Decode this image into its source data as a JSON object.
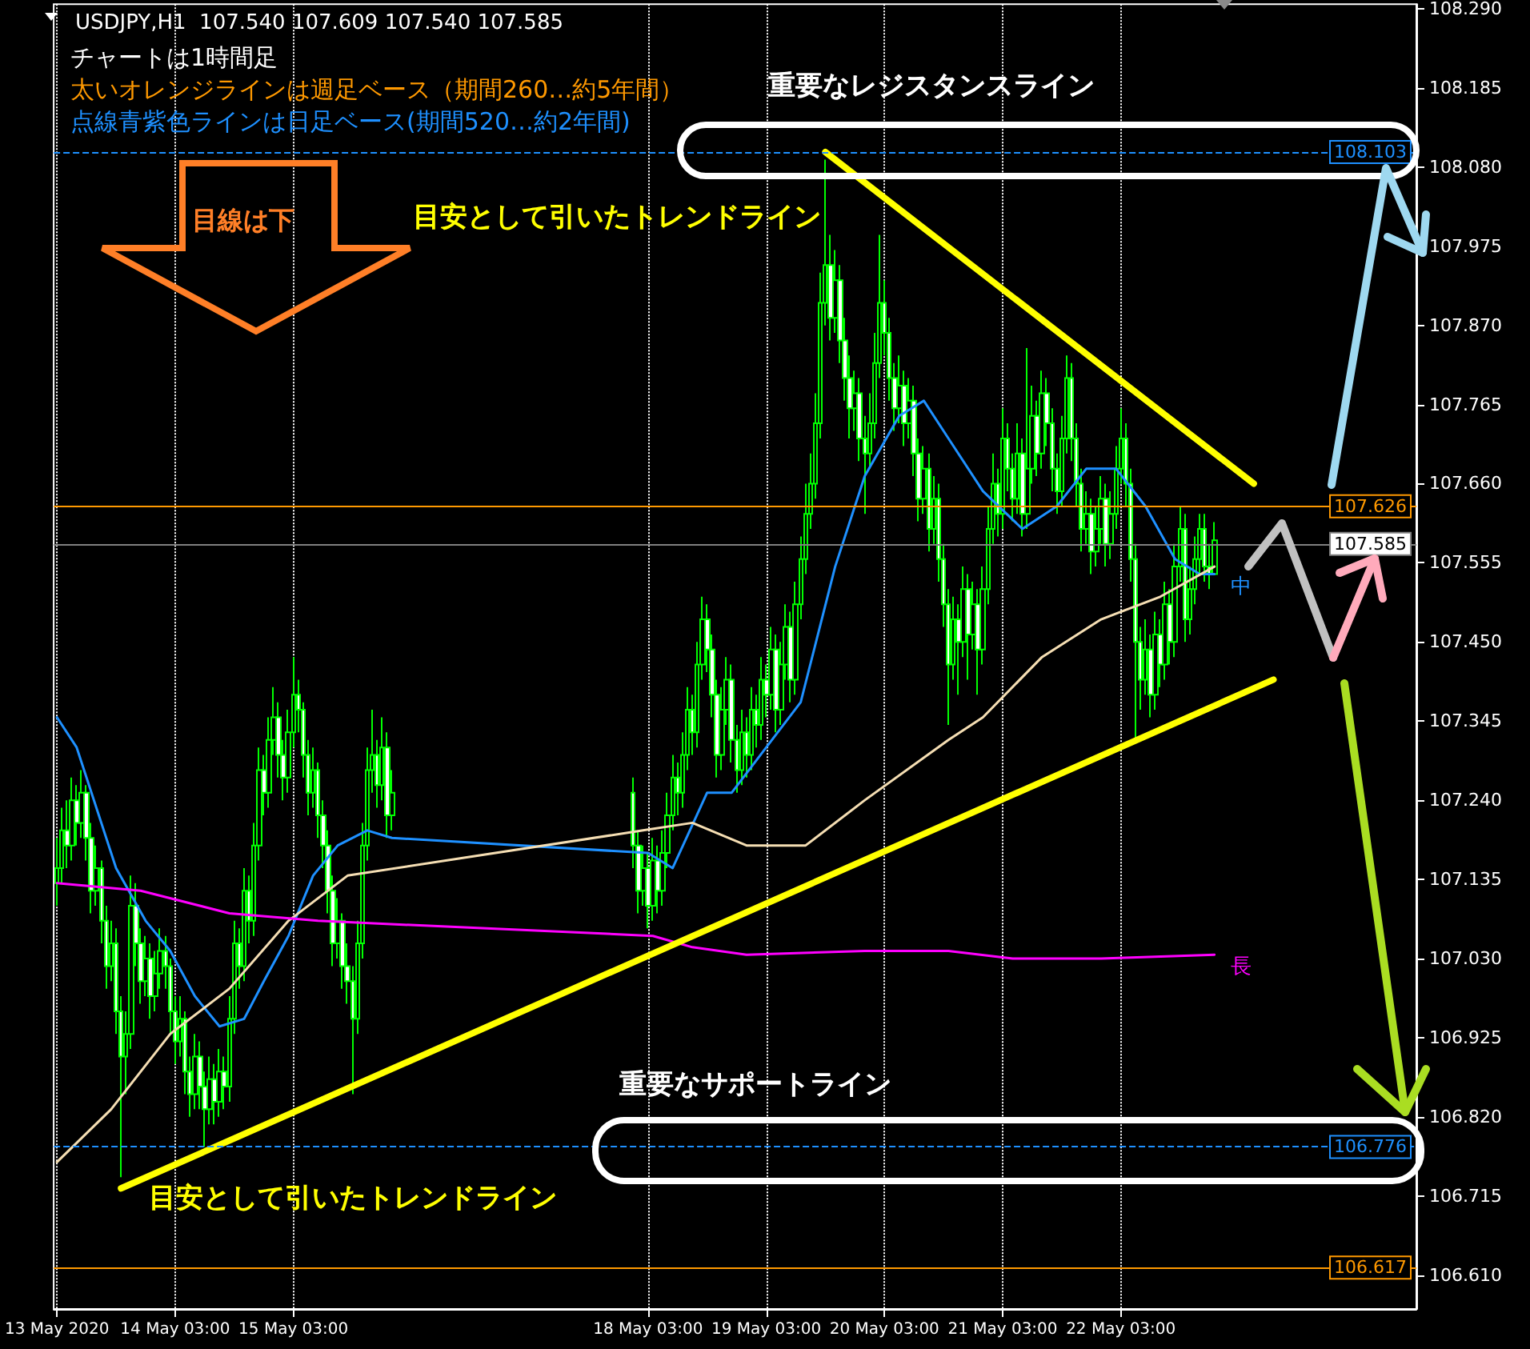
{
  "chart_data": {
    "type": "candlestick",
    "title": "USDJPY,H1  107.540 107.609 107.540 107.585",
    "annotations": [
      "チャートは1時間足",
      "太いオレンジラインは週足ベース（期間260…約5年間）",
      "点線青紫色ラインは日足ベース(期間520…約2年間)",
      "目線は下",
      "重要なレジスタンスライン",
      "目安として引いたトレンドライン",
      "目安として引いたトレンドライン",
      "重要なサポートライン"
    ],
    "xlim": [
      "2020-05-13T02:20",
      "2020-05-24T15:00"
    ],
    "xticks": [
      {
        "value": "2020-05-13T03:00",
        "label": "13 May 2020"
      },
      {
        "value": "2020-05-14T03:00",
        "label": "14 May 03:00"
      },
      {
        "value": "2020-05-15T03:00",
        "label": "15 May 03:00"
      },
      {
        "value": "2020-05-18T03:00",
        "label": "18 May 03:00"
      },
      {
        "value": "2020-05-19T03:00",
        "label": "19 May 03:00"
      },
      {
        "value": "2020-05-20T03:00",
        "label": "20 May 03:00"
      },
      {
        "value": "2020-05-21T03:00",
        "label": "21 May 03:00"
      },
      {
        "value": "2020-05-22T03:00",
        "label": "22 May 03:00"
      }
    ],
    "ylim": [
      106.565,
      108.296
    ],
    "yticks": [
      {
        "value": 108.29,
        "label": "108.290"
      },
      {
        "value": 108.185,
        "label": "108.185"
      },
      {
        "value": 108.08,
        "label": "108.080"
      },
      {
        "value": 107.975,
        "label": "107.975"
      },
      {
        "value": 107.87,
        "label": "107.870"
      },
      {
        "value": 107.765,
        "label": "107.765"
      },
      {
        "value": 107.66,
        "label": "107.660"
      },
      {
        "value": 107.555,
        "label": "107.555"
      },
      {
        "value": 107.45,
        "label": "107.450"
      },
      {
        "value": 107.345,
        "label": "107.345"
      },
      {
        "value": 107.24,
        "label": "107.240"
      },
      {
        "value": 107.135,
        "label": "107.135"
      },
      {
        "value": 107.03,
        "label": "107.030"
      },
      {
        "value": 106.925,
        "label": "106.925"
      },
      {
        "value": 106.82,
        "label": "106.820"
      },
      {
        "value": 106.715,
        "label": "106.715"
      },
      {
        "value": 106.61,
        "label": "106.610"
      }
    ],
    "grid": "x",
    "marker": "none",
    "ref_lines": [
      {
        "axis": "y",
        "value": 108.103,
        "label": "108.103",
        "color": "#1e90ff",
        "line_style": "dashed"
      },
      {
        "axis": "y",
        "value": 107.626,
        "label": "107.626",
        "color": "#ff9900",
        "line_style": "solid"
      },
      {
        "axis": "y",
        "value": 107.585,
        "label": "107.585",
        "color": "#808080",
        "line_style": "solid"
      },
      {
        "axis": "y",
        "value": 106.776,
        "label": "106.776",
        "color": "#1e90ff",
        "line_style": "dashed"
      },
      {
        "axis": "y",
        "value": 106.617,
        "label": "106.617",
        "color": "#ff9900",
        "line_style": "solid"
      }
    ],
    "series": [
      {
        "color": "#00ff00",
        "x": [
          "2020-05-13T03:00",
          "2020-05-13T04:00",
          "2020-05-13T05:00",
          "2020-05-13T06:00",
          "2020-05-13T07:00",
          "2020-05-13T08:00",
          "2020-05-13T09:00",
          "2020-05-13T10:00",
          "2020-05-13T11:00",
          "2020-05-13T12:00",
          "2020-05-13T13:00",
          "2020-05-13T14:00",
          "2020-05-13T15:00",
          "2020-05-13T16:00",
          "2020-05-13T17:00",
          "2020-05-13T18:00",
          "2020-05-13T19:00",
          "2020-05-13T20:00",
          "2020-05-13T21:00",
          "2020-05-13T22:00",
          "2020-05-13T23:00",
          "2020-05-14T00:00",
          "2020-05-14T01:00",
          "2020-05-14T02:00",
          "2020-05-14T03:00",
          "2020-05-14T04:00",
          "2020-05-14T05:00",
          "2020-05-14T06:00",
          "2020-05-14T07:00",
          "2020-05-14T08:00",
          "2020-05-14T09:00",
          "2020-05-14T10:00",
          "2020-05-14T11:00",
          "2020-05-14T12:00",
          "2020-05-14T13:00",
          "2020-05-14T14:00",
          "2020-05-14T15:00",
          "2020-05-14T16:00",
          "2020-05-14T17:00",
          "2020-05-14T18:00",
          "2020-05-14T19:00",
          "2020-05-14T20:00",
          "2020-05-14T21:00",
          "2020-05-14T22:00",
          "2020-05-14T23:00",
          "2020-05-15T00:00",
          "2020-05-15T01:00",
          "2020-05-15T02:00",
          "2020-05-15T03:00",
          "2020-05-15T04:00",
          "2020-05-15T05:00",
          "2020-05-15T06:00",
          "2020-05-15T07:00",
          "2020-05-15T08:00",
          "2020-05-15T09:00",
          "2020-05-15T10:00",
          "2020-05-15T11:00",
          "2020-05-15T12:00",
          "2020-05-15T13:00",
          "2020-05-15T14:00",
          "2020-05-15T15:00",
          "2020-05-15T16:00",
          "2020-05-15T17:00",
          "2020-05-15T18:00",
          "2020-05-15T19:00",
          "2020-05-15T20:00",
          "2020-05-15T21:00",
          "2020-05-15T22:00",
          "2020-05-15T23:00",
          "2020-05-18T00:00",
          "2020-05-18T01:00",
          "2020-05-18T02:00",
          "2020-05-18T03:00",
          "2020-05-18T04:00",
          "2020-05-18T05:00",
          "2020-05-18T06:00",
          "2020-05-18T07:00",
          "2020-05-18T08:00",
          "2020-05-18T09:00",
          "2020-05-18T10:00",
          "2020-05-18T11:00",
          "2020-05-18T12:00",
          "2020-05-18T13:00",
          "2020-05-18T14:00",
          "2020-05-18T15:00",
          "2020-05-18T16:00",
          "2020-05-18T17:00",
          "2020-05-18T18:00",
          "2020-05-18T19:00",
          "2020-05-18T20:00",
          "2020-05-18T21:00",
          "2020-05-18T22:00",
          "2020-05-18T23:00",
          "2020-05-19T00:00",
          "2020-05-19T01:00",
          "2020-05-19T02:00",
          "2020-05-19T03:00",
          "2020-05-19T04:00",
          "2020-05-19T05:00",
          "2020-05-19T06:00",
          "2020-05-19T07:00",
          "2020-05-19T08:00",
          "2020-05-19T09:00",
          "2020-05-19T10:00",
          "2020-05-19T11:00",
          "2020-05-19T12:00",
          "2020-05-19T13:00",
          "2020-05-19T14:00",
          "2020-05-19T15:00",
          "2020-05-19T16:00",
          "2020-05-19T17:00",
          "2020-05-19T18:00",
          "2020-05-19T19:00",
          "2020-05-19T20:00",
          "2020-05-19T21:00",
          "2020-05-19T22:00",
          "2020-05-19T23:00",
          "2020-05-20T00:00",
          "2020-05-20T01:00",
          "2020-05-20T02:00",
          "2020-05-20T03:00",
          "2020-05-20T04:00",
          "2020-05-20T05:00",
          "2020-05-20T06:00",
          "2020-05-20T07:00",
          "2020-05-20T08:00",
          "2020-05-20T09:00",
          "2020-05-20T10:00",
          "2020-05-20T11:00",
          "2020-05-20T12:00",
          "2020-05-20T13:00",
          "2020-05-20T14:00",
          "2020-05-20T15:00",
          "2020-05-20T16:00",
          "2020-05-20T17:00",
          "2020-05-20T18:00",
          "2020-05-20T19:00",
          "2020-05-20T20:00",
          "2020-05-20T21:00",
          "2020-05-20T22:00",
          "2020-05-20T23:00",
          "2020-05-21T00:00",
          "2020-05-21T01:00",
          "2020-05-21T02:00",
          "2020-05-21T03:00",
          "2020-05-21T04:00",
          "2020-05-21T05:00",
          "2020-05-21T06:00",
          "2020-05-21T07:00",
          "2020-05-21T08:00",
          "2020-05-21T09:00",
          "2020-05-21T10:00",
          "2020-05-21T11:00",
          "2020-05-21T12:00",
          "2020-05-21T13:00",
          "2020-05-21T14:00",
          "2020-05-21T15:00",
          "2020-05-21T16:00",
          "2020-05-21T17:00",
          "2020-05-21T18:00",
          "2020-05-21T19:00",
          "2020-05-21T20:00",
          "2020-05-21T21:00",
          "2020-05-21T22:00",
          "2020-05-21T23:00",
          "2020-05-22T00:00",
          "2020-05-22T01:00",
          "2020-05-22T02:00",
          "2020-05-22T03:00",
          "2020-05-22T04:00",
          "2020-05-22T05:00",
          "2020-05-22T06:00",
          "2020-05-22T07:00",
          "2020-05-22T08:00",
          "2020-05-22T09:00",
          "2020-05-22T10:00",
          "2020-05-22T11:00",
          "2020-05-22T12:00",
          "2020-05-22T13:00",
          "2020-05-22T14:00",
          "2020-05-22T15:00",
          "2020-05-22T16:00",
          "2020-05-22T17:00",
          "2020-05-22T18:00",
          "2020-05-22T19:00",
          "2020-05-22T20:00",
          "2020-05-22T21:00",
          "2020-05-22T22:00"
        ],
        "ohlc": [
          [
            107.13,
            107.19,
            107.1,
            107.15
          ],
          [
            107.15,
            107.23,
            107.13,
            107.2
          ],
          [
            107.2,
            107.24,
            107.15,
            107.18
          ],
          [
            107.18,
            107.27,
            107.16,
            107.24
          ],
          [
            107.24,
            107.26,
            107.18,
            107.21
          ],
          [
            107.21,
            107.28,
            107.19,
            107.25
          ],
          [
            107.25,
            107.26,
            107.16,
            107.19
          ],
          [
            107.19,
            107.21,
            107.09,
            107.12
          ],
          [
            107.12,
            107.18,
            107.1,
            107.15
          ],
          [
            107.15,
            107.16,
            107.05,
            107.08
          ],
          [
            107.08,
            107.1,
            106.99,
            107.02
          ],
          [
            107.02,
            107.08,
            107.0,
            107.05
          ],
          [
            107.05,
            107.07,
            106.93,
            106.96
          ],
          [
            106.96,
            106.98,
            106.74,
            106.9
          ],
          [
            106.9,
            106.96,
            106.85,
            106.93
          ],
          [
            106.93,
            107.14,
            106.91,
            107.1
          ],
          [
            107.1,
            107.13,
            107.02,
            107.05
          ],
          [
            107.05,
            107.07,
            106.97,
            107.0
          ],
          [
            107.0,
            107.06,
            106.98,
            107.03
          ],
          [
            107.03,
            107.05,
            106.95,
            106.98
          ],
          [
            106.98,
            107.04,
            106.96,
            107.01
          ],
          [
            107.01,
            107.07,
            106.99,
            107.04
          ],
          [
            107.04,
            107.06,
            106.99,
            107.02
          ],
          [
            107.02,
            107.03,
            106.93,
            106.96
          ],
          [
            106.96,
            106.98,
            106.89,
            106.92
          ],
          [
            106.92,
            106.98,
            106.9,
            106.95
          ],
          [
            106.95,
            106.96,
            106.85,
            106.88
          ],
          [
            106.88,
            106.9,
            106.82,
            106.85
          ],
          [
            106.85,
            106.93,
            106.83,
            106.9
          ],
          [
            106.9,
            106.92,
            106.83,
            106.86
          ],
          [
            106.86,
            106.88,
            106.78,
            106.83
          ],
          [
            106.83,
            106.9,
            106.81,
            106.87
          ],
          [
            106.87,
            106.89,
            106.81,
            106.84
          ],
          [
            106.84,
            106.91,
            106.82,
            106.88
          ],
          [
            106.88,
            106.9,
            106.83,
            106.86
          ],
          [
            106.86,
            106.98,
            106.84,
            106.95
          ],
          [
            106.95,
            107.08,
            106.93,
            107.05
          ],
          [
            107.05,
            107.07,
            106.99,
            107.02
          ],
          [
            107.02,
            107.15,
            107.0,
            107.12
          ],
          [
            107.12,
            107.14,
            107.05,
            107.08
          ],
          [
            107.08,
            107.21,
            107.06,
            107.18
          ],
          [
            107.18,
            107.31,
            107.16,
            107.28
          ],
          [
            107.28,
            107.3,
            107.22,
            107.25
          ],
          [
            107.25,
            107.35,
            107.23,
            107.32
          ],
          [
            107.32,
            107.39,
            107.3,
            107.35
          ],
          [
            107.35,
            107.37,
            107.27,
            107.3
          ],
          [
            107.3,
            107.32,
            107.24,
            107.27
          ],
          [
            107.27,
            107.36,
            107.25,
            107.33
          ],
          [
            107.33,
            107.43,
            107.31,
            107.38
          ],
          [
            107.38,
            107.4,
            107.33,
            107.36
          ],
          [
            107.36,
            107.37,
            107.27,
            107.3
          ],
          [
            107.3,
            107.32,
            107.22,
            107.25
          ],
          [
            107.25,
            107.31,
            107.23,
            107.28
          ],
          [
            107.28,
            107.29,
            107.19,
            107.22
          ],
          [
            107.22,
            107.24,
            107.15,
            107.18
          ],
          [
            107.18,
            107.2,
            107.09,
            107.12
          ],
          [
            107.12,
            107.14,
            107.02,
            107.05
          ],
          [
            107.05,
            107.11,
            107.03,
            107.08
          ],
          [
            107.08,
            107.09,
            106.99,
            107.02
          ],
          [
            107.02,
            107.05,
            106.97,
            107.0
          ],
          [
            107.0,
            107.02,
            106.85,
            106.95
          ],
          [
            106.95,
            107.08,
            106.93,
            107.05
          ],
          [
            107.05,
            107.21,
            107.03,
            107.18
          ],
          [
            107.18,
            107.31,
            107.16,
            107.28
          ],
          [
            107.28,
            107.36,
            107.25,
            107.3
          ],
          [
            107.3,
            107.32,
            107.23,
            107.26
          ],
          [
            107.26,
            107.35,
            107.24,
            107.31
          ],
          [
            107.31,
            107.33,
            107.19,
            107.22
          ],
          [
            107.22,
            107.28,
            107.2,
            107.25
          ],
          [
            107.25,
            107.27,
            107.15,
            107.18
          ],
          [
            107.18,
            107.2,
            107.09,
            107.12
          ],
          [
            107.12,
            107.18,
            107.1,
            107.15
          ],
          [
            107.15,
            107.17,
            107.07,
            107.1
          ],
          [
            107.1,
            107.19,
            107.08,
            107.16
          ],
          [
            107.16,
            107.18,
            107.09,
            107.12
          ],
          [
            107.12,
            107.2,
            107.1,
            107.17
          ],
          [
            107.17,
            107.25,
            107.15,
            107.22
          ],
          [
            107.22,
            107.3,
            107.2,
            107.27
          ],
          [
            107.27,
            107.29,
            107.22,
            107.25
          ],
          [
            107.25,
            107.33,
            107.23,
            107.3
          ],
          [
            107.3,
            107.39,
            107.28,
            107.36
          ],
          [
            107.36,
            107.38,
            107.3,
            107.33
          ],
          [
            107.33,
            107.45,
            107.31,
            107.42
          ],
          [
            107.42,
            107.51,
            107.4,
            107.48
          ],
          [
            107.48,
            107.5,
            107.41,
            107.44
          ],
          [
            107.44,
            107.46,
            107.35,
            107.38
          ],
          [
            107.38,
            107.4,
            107.27,
            107.3
          ],
          [
            107.3,
            107.39,
            107.28,
            107.36
          ],
          [
            107.36,
            107.43,
            107.34,
            107.4
          ],
          [
            107.4,
            107.42,
            107.29,
            107.32
          ],
          [
            107.32,
            107.34,
            107.25,
            107.28
          ],
          [
            107.28,
            107.36,
            107.26,
            107.33
          ],
          [
            107.33,
            107.35,
            107.27,
            107.3
          ],
          [
            107.3,
            107.39,
            107.28,
            107.36
          ],
          [
            107.36,
            107.38,
            107.31,
            107.34
          ],
          [
            107.34,
            107.43,
            107.32,
            107.4
          ],
          [
            107.4,
            107.42,
            107.35,
            107.38
          ],
          [
            107.38,
            107.47,
            107.36,
            107.44
          ],
          [
            107.44,
            107.46,
            107.33,
            107.36
          ],
          [
            107.36,
            107.45,
            107.34,
            107.42
          ],
          [
            107.42,
            107.5,
            107.4,
            107.47
          ],
          [
            107.47,
            107.49,
            107.37,
            107.4
          ],
          [
            107.4,
            107.53,
            107.38,
            107.5
          ],
          [
            107.5,
            107.59,
            107.48,
            107.56
          ],
          [
            107.56,
            107.66,
            107.54,
            107.62
          ],
          [
            107.62,
            107.7,
            107.6,
            107.66
          ],
          [
            107.66,
            107.78,
            107.64,
            107.74
          ],
          [
            107.74,
            107.94,
            107.72,
            107.9
          ],
          [
            107.9,
            108.09,
            107.87,
            107.95
          ],
          [
            107.95,
            107.99,
            107.85,
            107.88
          ],
          [
            107.88,
            107.97,
            107.86,
            107.93
          ],
          [
            107.93,
            107.95,
            107.82,
            107.85
          ],
          [
            107.85,
            107.88,
            107.77,
            107.8
          ],
          [
            107.8,
            107.83,
            107.72,
            107.76
          ],
          [
            107.76,
            107.81,
            107.73,
            107.78
          ],
          [
            107.78,
            107.8,
            107.69,
            107.72
          ],
          [
            107.72,
            107.75,
            107.62,
            107.7
          ],
          [
            107.7,
            107.78,
            107.68,
            107.74
          ],
          [
            107.74,
            107.86,
            107.72,
            107.82
          ],
          [
            107.82,
            107.99,
            107.8,
            107.9
          ],
          [
            107.9,
            107.93,
            107.83,
            107.86
          ],
          [
            107.86,
            107.88,
            107.77,
            107.8
          ],
          [
            107.8,
            107.82,
            107.73,
            107.76
          ],
          [
            107.76,
            107.83,
            107.74,
            107.79
          ],
          [
            107.79,
            107.81,
            107.71,
            107.74
          ],
          [
            107.74,
            107.8,
            107.72,
            107.77
          ],
          [
            107.77,
            107.79,
            107.67,
            107.7
          ],
          [
            107.7,
            107.72,
            107.61,
            107.64
          ],
          [
            107.64,
            107.71,
            107.62,
            107.68
          ],
          [
            107.68,
            107.7,
            107.57,
            107.6
          ],
          [
            107.6,
            107.67,
            107.58,
            107.64
          ],
          [
            107.64,
            107.66,
            107.53,
            107.56
          ],
          [
            107.56,
            107.58,
            107.47,
            107.5
          ],
          [
            107.5,
            107.52,
            107.34,
            107.42
          ],
          [
            107.42,
            107.51,
            107.4,
            107.48
          ],
          [
            107.48,
            107.5,
            107.38,
            107.45
          ],
          [
            107.45,
            107.55,
            107.43,
            107.52
          ],
          [
            107.52,
            107.54,
            107.4,
            107.46
          ],
          [
            107.46,
            107.53,
            107.44,
            107.5
          ],
          [
            107.5,
            107.52,
            107.38,
            107.44
          ],
          [
            107.44,
            107.55,
            107.42,
            107.52
          ],
          [
            107.52,
            107.63,
            107.5,
            107.6
          ],
          [
            107.6,
            107.7,
            107.58,
            107.66
          ],
          [
            107.66,
            107.68,
            107.59,
            107.62
          ],
          [
            107.62,
            107.76,
            107.6,
            107.72
          ],
          [
            107.72,
            107.74,
            107.65,
            107.68
          ],
          [
            107.68,
            107.7,
            107.61,
            107.64
          ],
          [
            107.64,
            107.74,
            107.62,
            107.7
          ],
          [
            107.7,
            107.72,
            107.59,
            107.62
          ],
          [
            107.62,
            107.84,
            107.6,
            107.68
          ],
          [
            107.68,
            107.79,
            107.66,
            107.75
          ],
          [
            107.75,
            107.77,
            107.67,
            107.7
          ],
          [
            107.7,
            107.81,
            107.68,
            107.78
          ],
          [
            107.78,
            107.8,
            107.71,
            107.74
          ],
          [
            107.74,
            107.76,
            107.65,
            107.68
          ],
          [
            107.68,
            107.7,
            107.62,
            107.65
          ],
          [
            107.65,
            107.75,
            107.63,
            107.72
          ],
          [
            107.72,
            107.83,
            107.7,
            107.8
          ],
          [
            107.8,
            107.82,
            107.69,
            107.72
          ],
          [
            107.72,
            107.74,
            107.63,
            107.66
          ],
          [
            107.66,
            107.68,
            107.57,
            107.6
          ],
          [
            107.6,
            107.65,
            107.58,
            107.62
          ],
          [
            107.62,
            107.64,
            107.54,
            107.57
          ],
          [
            107.57,
            107.63,
            107.55,
            107.6
          ],
          [
            107.6,
            107.67,
            107.58,
            107.64
          ],
          [
            107.64,
            107.66,
            107.55,
            107.58
          ],
          [
            107.58,
            107.65,
            107.56,
            107.62
          ],
          [
            107.62,
            107.71,
            107.6,
            107.68
          ],
          [
            107.68,
            107.76,
            107.66,
            107.72
          ],
          [
            107.72,
            107.74,
            107.63,
            107.66
          ],
          [
            107.66,
            107.68,
            107.53,
            107.56
          ],
          [
            107.56,
            107.58,
            107.32,
            107.45
          ],
          [
            107.45,
            107.47,
            107.36,
            107.4
          ],
          [
            107.4,
            107.48,
            107.38,
            107.44
          ],
          [
            107.44,
            107.46,
            107.35,
            107.38
          ],
          [
            107.38,
            107.49,
            107.36,
            107.46
          ],
          [
            107.46,
            107.48,
            107.39,
            107.42
          ],
          [
            107.42,
            107.53,
            107.4,
            107.5
          ],
          [
            107.5,
            107.52,
            107.42,
            107.45
          ],
          [
            107.45,
            107.58,
            107.43,
            107.55
          ],
          [
            107.55,
            107.63,
            107.53,
            107.6
          ],
          [
            107.6,
            107.62,
            107.45,
            107.48
          ],
          [
            107.48,
            107.55,
            107.46,
            107.52
          ],
          [
            107.52,
            107.59,
            107.5,
            107.56
          ],
          [
            107.56,
            107.62,
            107.54,
            107.6
          ],
          [
            107.6,
            107.62,
            107.53,
            107.55
          ],
          [
            107.55,
            107.58,
            107.52,
            107.54
          ],
          [
            107.54,
            107.609,
            107.54,
            107.585
          ]
        ]
      },
      {
        "type": "line",
        "name": "中",
        "color": "#1e90ff",
        "x": [
          "2020-05-13T03:00",
          "2020-05-13T07:00",
          "2020-05-13T15:00",
          "2020-05-13T21:00",
          "2020-05-14T02:00",
          "2020-05-14T07:00",
          "2020-05-14T12:00",
          "2020-05-14T17:00",
          "2020-05-14T21:00",
          "2020-05-15T02:00",
          "2020-05-15T07:00",
          "2020-05-15T12:00",
          "2020-05-15T18:00",
          "2020-05-15T23:00",
          "2020-05-18T03:00",
          "2020-05-18T08:00",
          "2020-05-18T15:00",
          "2020-05-18T20:00",
          "2020-05-19T03:00",
          "2020-05-19T10:00",
          "2020-05-19T17:00",
          "2020-05-19T23:00",
          "2020-05-20T06:00",
          "2020-05-20T11:00",
          "2020-05-20T16:00",
          "2020-05-20T23:00",
          "2020-05-21T07:00",
          "2020-05-21T14:00",
          "2020-05-21T20:00",
          "2020-05-22T02:00",
          "2020-05-22T08:00",
          "2020-05-22T14:00",
          "2020-05-22T19:00",
          "2020-05-22T22:00"
        ],
        "values": [
          107.35,
          107.31,
          107.15,
          107.08,
          107.04,
          106.98,
          106.94,
          106.95,
          107.0,
          107.06,
          107.14,
          107.18,
          107.2,
          107.19,
          107.17,
          107.15,
          107.25,
          107.25,
          107.31,
          107.37,
          107.55,
          107.67,
          107.75,
          107.77,
          107.72,
          107.65,
          107.6,
          107.63,
          107.68,
          107.68,
          107.63,
          107.56,
          107.54,
          107.54
        ]
      },
      {
        "type": "line",
        "color": "#f5deb3",
        "x": [
          "2020-05-13T03:00",
          "2020-05-13T14:00",
          "2020-05-14T02:00",
          "2020-05-14T14:00",
          "2020-05-15T02:00",
          "2020-05-15T14:00",
          "2020-05-18T02:00",
          "2020-05-18T12:00",
          "2020-05-18T23:00",
          "2020-05-19T11:00",
          "2020-05-19T23:00",
          "2020-05-20T16:00",
          "2020-05-20T23:00",
          "2020-05-21T11:00",
          "2020-05-21T23:00",
          "2020-05-22T11:00",
          "2020-05-22T22:00"
        ],
        "values": [
          106.76,
          106.83,
          106.93,
          106.99,
          107.08,
          107.14,
          107.2,
          107.21,
          107.18,
          107.18,
          107.24,
          107.32,
          107.35,
          107.43,
          107.48,
          107.51,
          107.55
        ]
      },
      {
        "type": "line",
        "name": "長",
        "color": "#ff00ff",
        "x": [
          "2020-05-13T03:00",
          "2020-05-13T20:00",
          "2020-05-14T14:00",
          "2020-05-15T08:00",
          "2020-05-18T04:00",
          "2020-05-18T12:00",
          "2020-05-18T23:00",
          "2020-05-19T23:00",
          "2020-05-20T16:00",
          "2020-05-21T05:00",
          "2020-05-21T23:00",
          "2020-05-22T22:00"
        ],
        "values": [
          107.13,
          107.12,
          107.09,
          107.08,
          107.06,
          107.045,
          107.035,
          107.04,
          107.04,
          107.03,
          107.03,
          107.035
        ]
      },
      {
        "type": "line",
        "color": "#ffff00",
        "x": [
          "2020-05-19T15:00",
          "2020-05-23T06:00"
        ],
        "values": [
          108.1,
          107.66
        ]
      },
      {
        "type": "line",
        "color": "#ffff00",
        "x": [
          "2020-05-13T16:00",
          "2020-05-23T10:00"
        ],
        "values": [
          106.725,
          107.4
        ]
      }
    ]
  }
}
